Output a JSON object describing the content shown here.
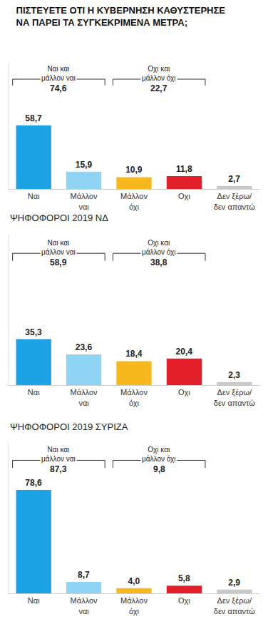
{
  "chart_data": [
    {
      "type": "bar",
      "title": "ΠΙΣΤΕΥΕΤΕ ΟΤΙ Η ΚΥΒΕΡΝΗΣΗ ΚΑΘΥΣΤΕΡΗΣΕ ΝΑ ΠΑΡΕΙ ΤΑ ΣΥΓΚΕΚΡΙΜΕΝΑ ΜΕΤΡΑ;",
      "categories": [
        "Ναι",
        "Μάλλον ναι",
        "Μάλλον όχι",
        "Οχι",
        "Δεν ξέρω/ δεν απαντώ"
      ],
      "values": [
        58.7,
        15.9,
        10.9,
        11.8,
        2.7
      ],
      "value_labels": [
        "58,7",
        "15,9",
        "10,9",
        "11,8",
        "2,7"
      ],
      "colors": [
        "#1ba3e6",
        "#8fd4f5",
        "#f6b81c",
        "#e3202a",
        "#c8c8c8"
      ],
      "ylim": [
        0,
        115
      ],
      "yticks": [],
      "grid": false,
      "data_labels": true,
      "tick_labels": "x",
      "annotations": [
        {
          "text": "Ναι και μάλλον ναι",
          "value": 74.6,
          "value_label": "74,6",
          "categories": [
            "Ναι",
            "Μάλλον ναι"
          ]
        },
        {
          "text": "Οχι και μάλλον όχι",
          "value": 22.7,
          "value_label": "22,7",
          "categories": [
            "Μάλλον όχι",
            "Οχι"
          ]
        }
      ]
    },
    {
      "type": "bar",
      "title": "ΨΗΦΟΦΟΡΟΙ 2019 ΝΔ",
      "categories": [
        "Ναι",
        "Μάλλον ναι",
        "Μάλλον όχι",
        "Οχι",
        "Δεν ξέρω/ δεν απαντώ"
      ],
      "values": [
        35.3,
        23.6,
        18.4,
        20.4,
        2.3
      ],
      "value_labels": [
        "35,3",
        "23,6",
        "18,4",
        "20,4",
        "2,3"
      ],
      "colors": [
        "#1ba3e6",
        "#8fd4f5",
        "#f6b81c",
        "#e3202a",
        "#c8c8c8"
      ],
      "ylim": [
        0,
        115
      ],
      "yticks": [],
      "grid": false,
      "data_labels": true,
      "tick_labels": "x",
      "annotations": [
        {
          "text": "Ναι και μάλλον ναι",
          "value": 58.9,
          "value_label": "58,9",
          "categories": [
            "Ναι",
            "Μάλλον ναι"
          ]
        },
        {
          "text": "Οχι και μάλλον όχι",
          "value": 38.8,
          "value_label": "38,8",
          "categories": [
            "Μάλλον όχι",
            "Οχι"
          ]
        }
      ]
    },
    {
      "type": "bar",
      "title": "ΨΗΦΟΦΟΡΟΙ 2019 ΣΥΡΙΖΑ",
      "categories": [
        "Ναι",
        "Μάλλον ναι",
        "Μάλλον όχι",
        "Οχι",
        "Δεν ξέρω/ δεν απαντώ"
      ],
      "values": [
        78.6,
        8.7,
        4.0,
        5.8,
        2.9
      ],
      "value_labels": [
        "78,6",
        "8,7",
        "4,0",
        "5,8",
        "2,9"
      ],
      "colors": [
        "#1ba3e6",
        "#8fd4f5",
        "#f6b81c",
        "#e3202a",
        "#c8c8c8"
      ],
      "ylim": [
        0,
        115
      ],
      "yticks": [],
      "grid": false,
      "data_labels": true,
      "tick_labels": "x",
      "annotations": [
        {
          "text": "Ναι και μάλλον ναι",
          "value": 87.3,
          "value_label": "87,3",
          "categories": [
            "Ναι",
            "Μάλλον ναι"
          ]
        },
        {
          "text": "Οχι και μάλλον όχι",
          "value": 9.8,
          "value_label": "9,8",
          "categories": [
            "Μάλλον όχι",
            "Οχι"
          ]
        }
      ]
    }
  ]
}
